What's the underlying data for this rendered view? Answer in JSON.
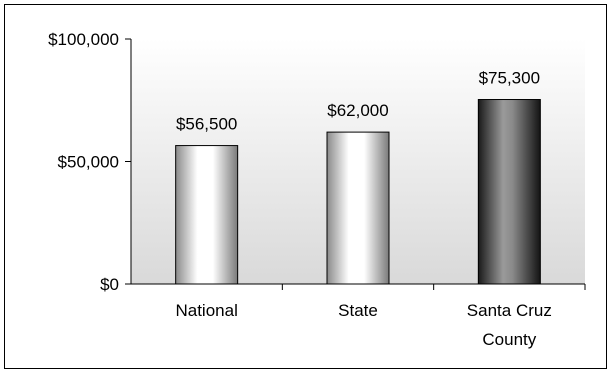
{
  "chart_data": {
    "type": "bar",
    "title": "",
    "xlabel": "",
    "ylabel": "",
    "categories": [
      "National",
      "State",
      "Santa Cruz County"
    ],
    "category_lines": [
      [
        "National"
      ],
      [
        "State"
      ],
      [
        "Santa Cruz",
        "County"
      ]
    ],
    "values": [
      56500,
      62000,
      75300
    ],
    "value_labels": [
      "$56,500",
      "$62,000",
      "$75,300"
    ],
    "ylim": [
      0,
      100000
    ],
    "yticks": [
      0,
      50000,
      100000
    ],
    "ytick_labels": [
      "$0",
      "$50,000",
      "$100,000"
    ],
    "grid": false,
    "legend": "none",
    "colors": {
      "plot_background_top": "#ffffff",
      "plot_background_bottom": "#d9d9d9",
      "highlight_bar": "#404040",
      "light_bar": "#e6e6e6",
      "bar_edge": "#000000"
    },
    "highlight_index": 2
  }
}
